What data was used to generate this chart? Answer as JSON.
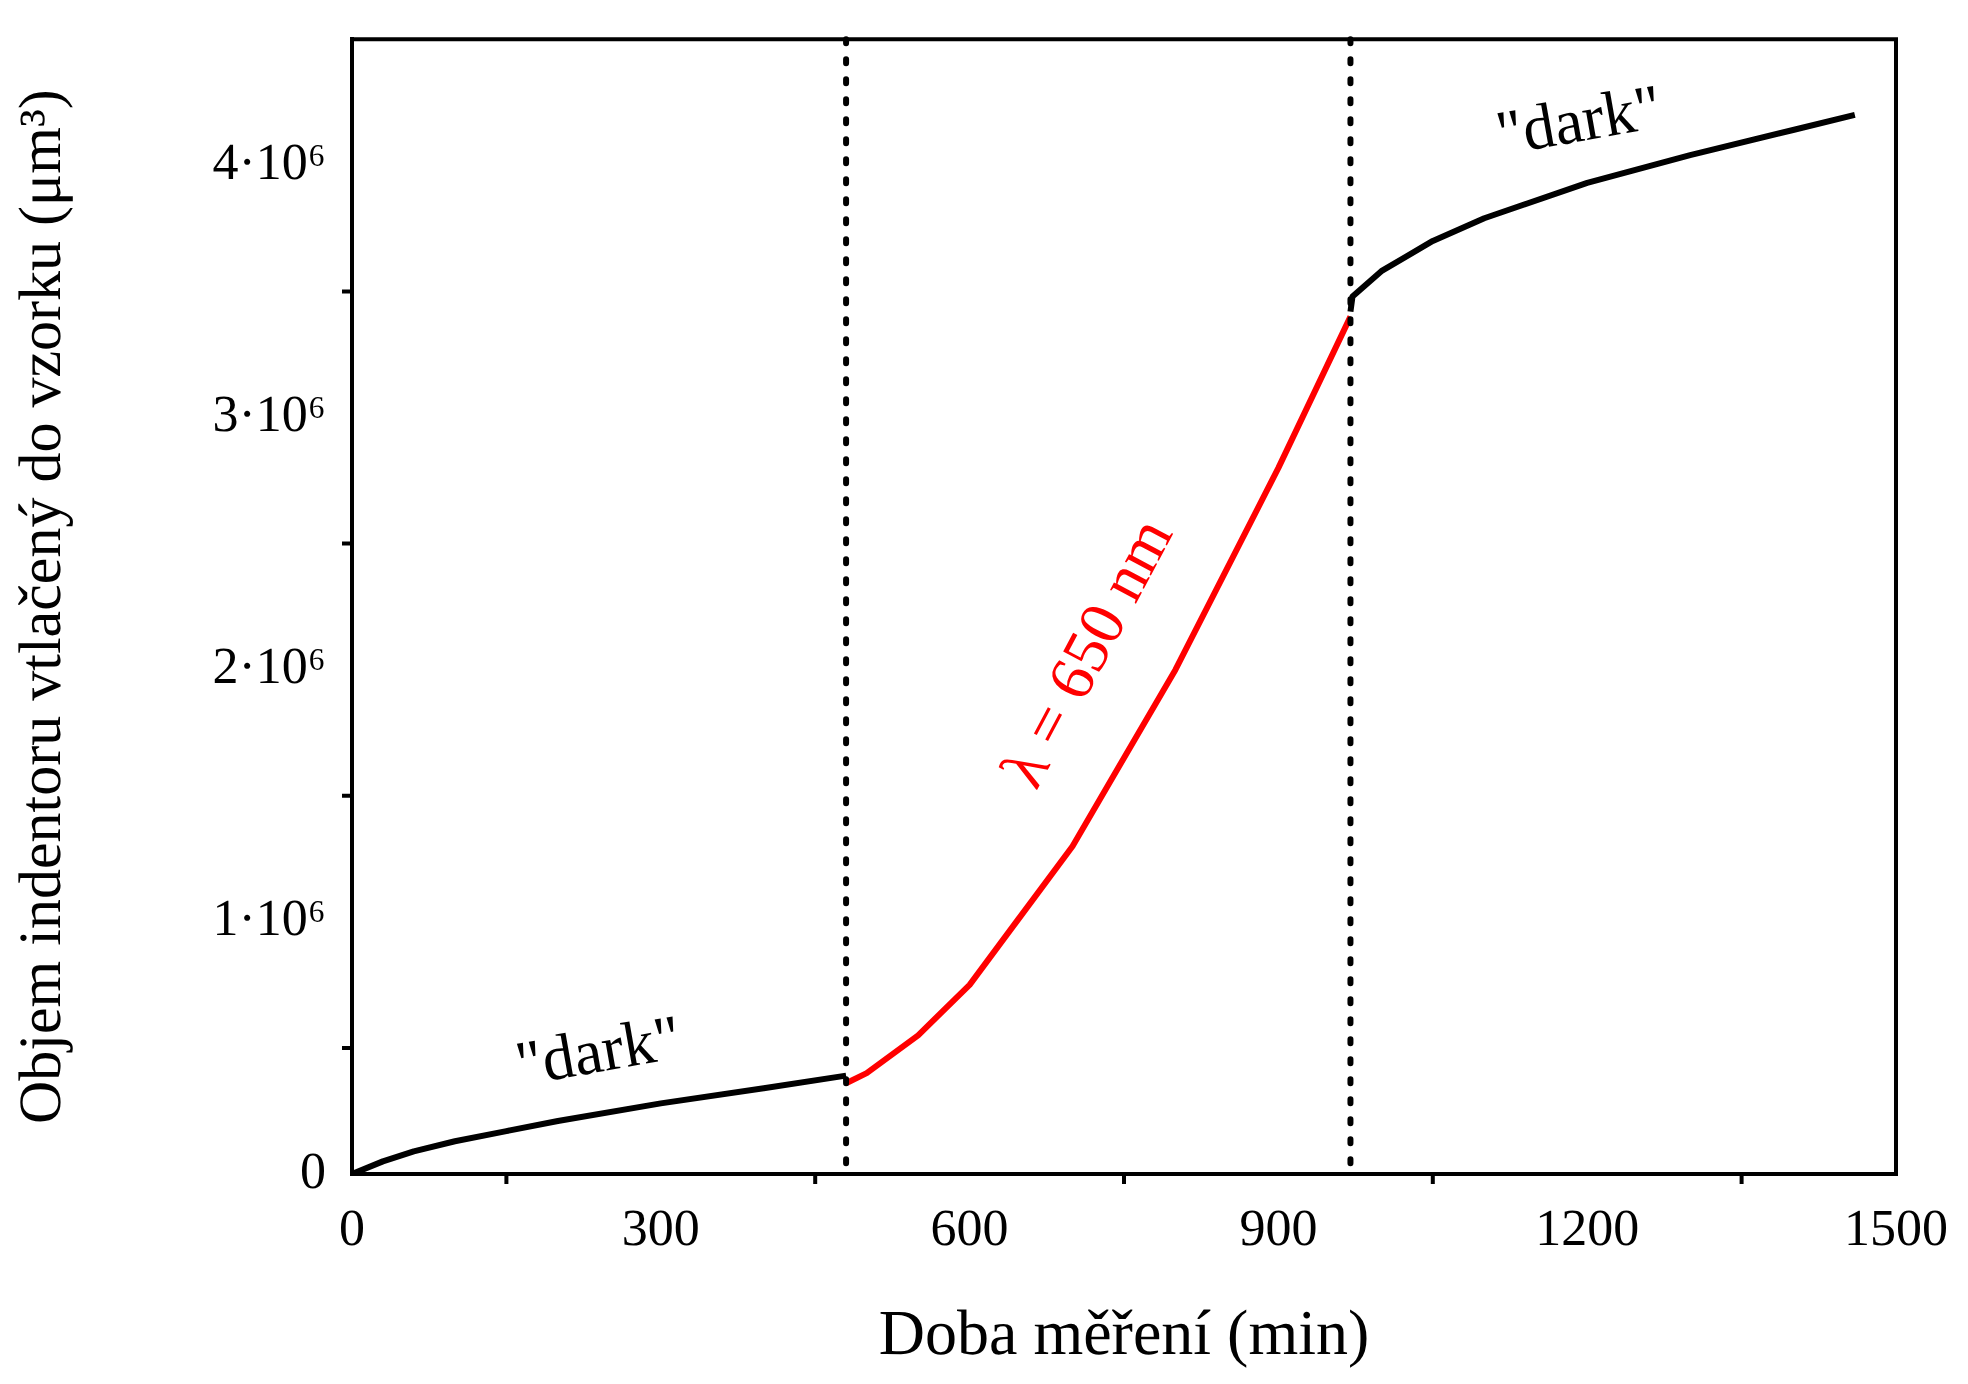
{
  "chart_data": {
    "type": "line",
    "xlabel": "Doba měření (min)",
    "ylabel": "Objem indentoru vtlačený do vzorku (μm³)",
    "xlim": [
      0,
      1500
    ],
    "xticks": [
      0,
      300,
      600,
      900,
      1200,
      1500
    ],
    "ylim": [
      0,
      4500000
    ],
    "yticks": [
      0,
      {
        "value": 1000000,
        "label": "1·10⁶"
      },
      {
        "value": 2000000,
        "label": "2·10⁶"
      },
      {
        "value": 3000000,
        "label": "3·10⁶"
      },
      {
        "value": 4000000,
        "label": "4·10⁶"
      }
    ],
    "grid": false,
    "legend": false,
    "marker": "none",
    "line_style": "solid",
    "series": [
      {
        "color": "#000000",
        "x": [
          0,
          30,
          60,
          100,
          150,
          200,
          300,
          400,
          480
        ],
        "values": [
          0,
          50000,
          90000,
          130000,
          170000,
          210000,
          280000,
          340000,
          390000
        ]
      },
      {
        "color": "#ff0000",
        "x": [
          480,
          500,
          550,
          600,
          700,
          800,
          900,
          970
        ],
        "values": [
          360000,
          400000,
          550000,
          750000,
          1300000,
          2000000,
          2800000,
          3400000
        ]
      },
      {
        "color": "#000000",
        "x": [
          970,
          972,
          1000,
          1050,
          1100,
          1200,
          1300,
          1400,
          1460
        ],
        "values": [
          3420000,
          3480000,
          3580000,
          3700000,
          3790000,
          3930000,
          4040000,
          4140000,
          4200000
        ]
      }
    ],
    "ref_lines": [
      {
        "axis": "x",
        "value": 480,
        "color": "#000000",
        "line_style": "dotted"
      },
      {
        "axis": "x",
        "value": 970,
        "color": "#000000",
        "line_style": "dotted"
      }
    ],
    "annotations": [
      "\"dark\"",
      "λ = 650 nm",
      "\"dark\""
    ]
  }
}
